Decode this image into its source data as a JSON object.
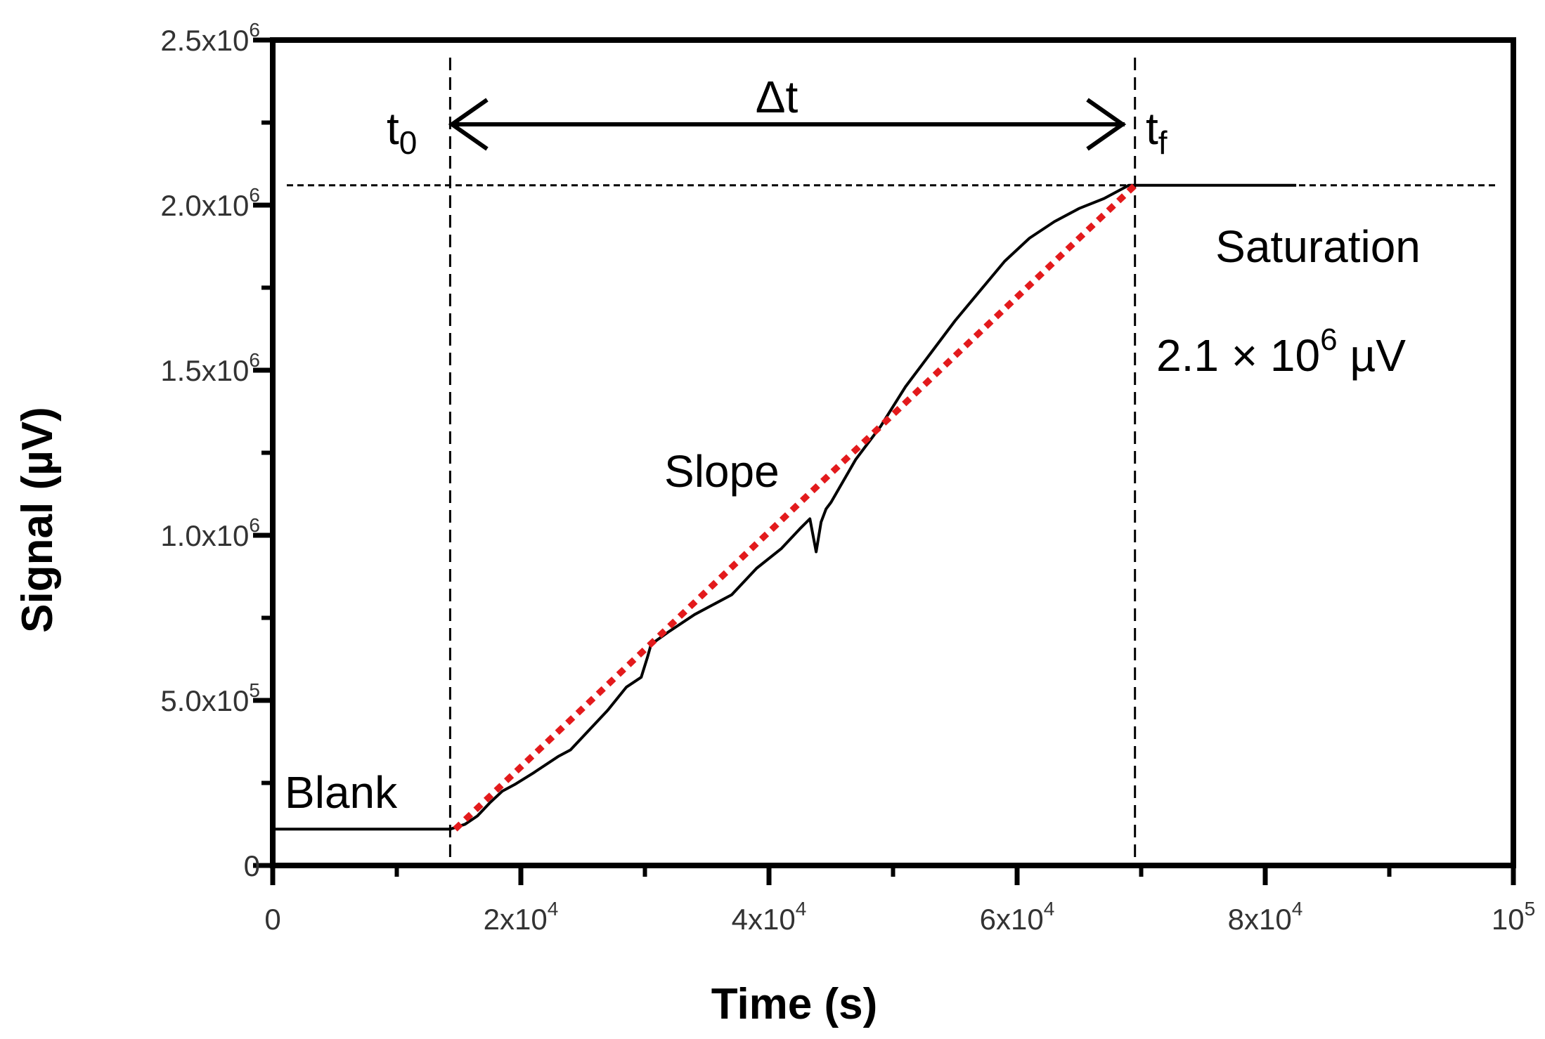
{
  "chart_data": {
    "type": "line",
    "xlabel": "Time (s)",
    "ylabel": "Signal (µV)",
    "xlim": [
      0,
      100000
    ],
    "ylim": [
      0,
      2500000
    ],
    "grid": false,
    "x_ticks": [
      {
        "value": 0,
        "mant": "0",
        "exp": ""
      },
      {
        "value": 20000,
        "mant": "2x10",
        "exp": "4"
      },
      {
        "value": 40000,
        "mant": "4x10",
        "exp": "4"
      },
      {
        "value": 60000,
        "mant": "6x10",
        "exp": "4"
      },
      {
        "value": 80000,
        "mant": "8x10",
        "exp": "4"
      },
      {
        "value": 100000,
        "mant": "10",
        "exp": "5"
      }
    ],
    "y_ticks": [
      {
        "value": 0,
        "mant": "0",
        "exp": ""
      },
      {
        "value": 500000,
        "mant": "5.0x10",
        "exp": "5"
      },
      {
        "value": 1000000,
        "mant": "1.0x10",
        "exp": "6"
      },
      {
        "value": 1500000,
        "mant": "1.5x10",
        "exp": "6"
      },
      {
        "value": 2000000,
        "mant": "2.0x10",
        "exp": "6"
      },
      {
        "value": 2500000,
        "mant": "2.5x10",
        "exp": "6"
      }
    ],
    "series": [
      {
        "color": "#000000",
        "style": "solid",
        "x": [
          0,
          14300,
          15500,
          16500,
          17500,
          18500,
          19500,
          21000,
          23000,
          24000,
          25500,
          27000,
          28500,
          29700,
          30200,
          30500,
          32000,
          34000,
          37000,
          39000,
          41000,
          42500,
          43300,
          43800,
          44200,
          44600,
          45000,
          47000,
          49000,
          51000,
          53000,
          55000,
          57000,
          59000,
          61000,
          63000,
          65000,
          67000,
          68500,
          69000,
          70000,
          74000,
          78000,
          82500
        ],
        "y": [
          110000,
          110000,
          125000,
          150000,
          190000,
          225000,
          245000,
          280000,
          330000,
          350000,
          410000,
          470000,
          540000,
          570000,
          630000,
          670000,
          710000,
          760000,
          820000,
          900000,
          960000,
          1020000,
          1050000,
          950000,
          1040000,
          1080000,
          1100000,
          1230000,
          1330000,
          1450000,
          1550000,
          1650000,
          1740000,
          1830000,
          1900000,
          1950000,
          1990000,
          2020000,
          2050000,
          2060000,
          2060000,
          2060000,
          2060000,
          2060000
        ]
      },
      {
        "color": "#e31a1c",
        "style": "dotted",
        "x": [
          14700,
          69500
        ],
        "y": [
          110000,
          2060000
        ]
      }
    ],
    "reference_lines": {
      "vertical_x": [
        14300,
        69500
      ],
      "horizontal_y": [
        2060000
      ]
    },
    "annotations": {
      "t0_base": "t",
      "t0_sub": "0",
      "delta_t": "Δt",
      "tf_base": "t",
      "tf_sub": "f",
      "blank": "Blank",
      "slope": "Slope",
      "saturation": "Saturation",
      "saturation_value_prefix": "2.1 × 10",
      "saturation_value_exp": "6",
      "saturation_value_unit": " µV"
    }
  }
}
